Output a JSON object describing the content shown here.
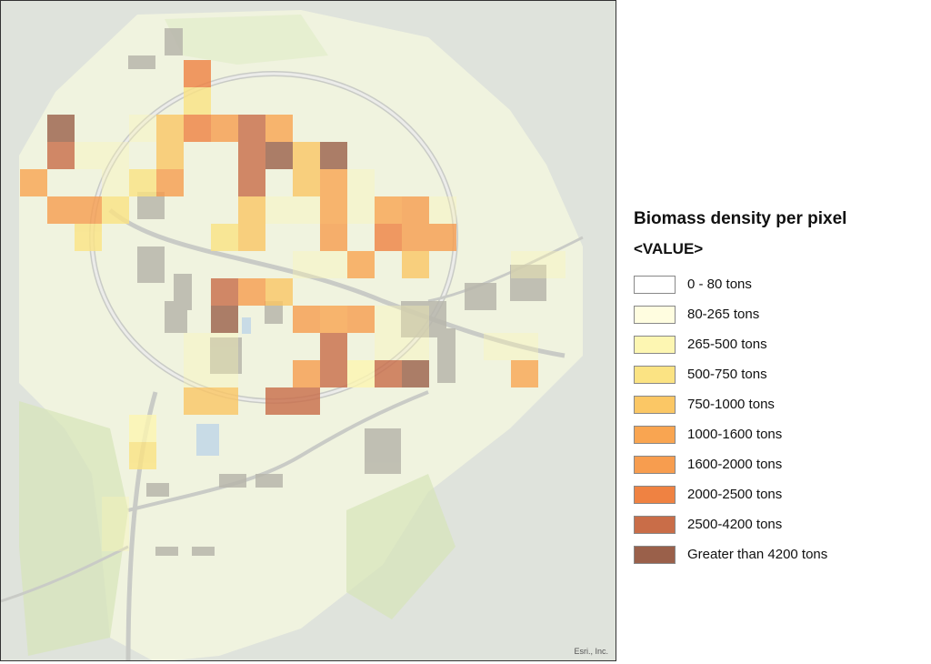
{
  "legend": {
    "title": "Biomass density per pixel",
    "field": "<VALUE>",
    "classes": [
      {
        "label": "0 - 80 tons",
        "color": "#ffffff"
      },
      {
        "label": "80-265 tons",
        "color": "#fffde0"
      },
      {
        "label": "265-500 tons",
        "color": "#fdf6b2"
      },
      {
        "label": "500-750 tons",
        "color": "#fbe383"
      },
      {
        "label": "750-1000 tons",
        "color": "#fbc765"
      },
      {
        "label": "1000-1600 tons",
        "color": "#f9a551"
      },
      {
        "label": "1600-2000 tons",
        "color": "#f79d4f"
      },
      {
        "label": "2000-2500 tons",
        "color": "#ef8242"
      },
      {
        "label": "2500-4200 tons",
        "color": "#c96d48"
      },
      {
        "label": "Greater than 4200 tons",
        "color": "#9a604a"
      }
    ]
  },
  "map": {
    "attribution": "Esri., Inc.",
    "basemap_colors": {
      "background": "#dfe3dc",
      "land": "#f3f5e6",
      "green": "#cfe1b0",
      "road": "#c9cbc6",
      "building": "#b8b6ac"
    }
  }
}
